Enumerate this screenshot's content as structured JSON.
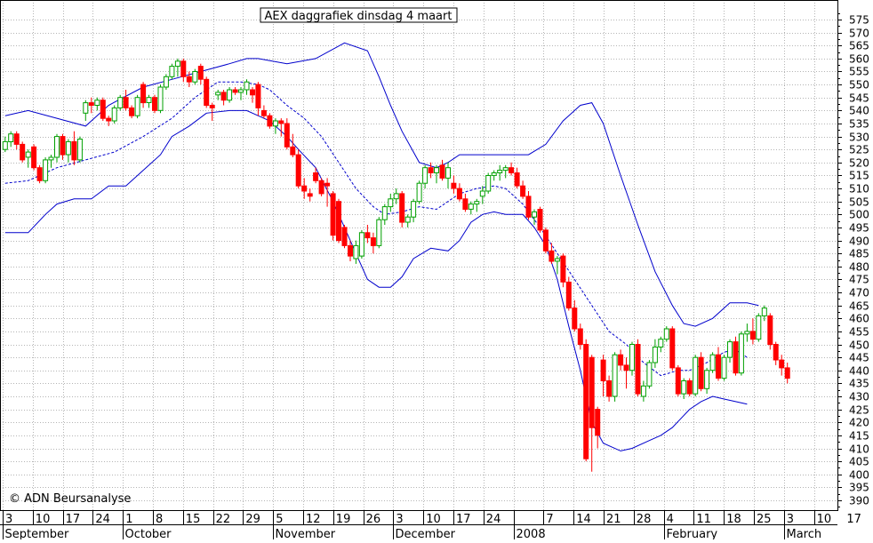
{
  "chart_data": {
    "type": "candlestick",
    "title": "AEX daggrafiek dinsdag 4 maart",
    "watermark": "© ADN Beursanalyse",
    "ylim": [
      386,
      580
    ],
    "y_ticks": [
      390,
      395,
      400,
      405,
      410,
      415,
      420,
      425,
      430,
      435,
      440,
      445,
      450,
      455,
      460,
      465,
      470,
      475,
      480,
      485,
      490,
      495,
      500,
      505,
      510,
      515,
      520,
      525,
      530,
      535,
      540,
      545,
      550,
      555,
      560,
      565,
      570,
      575
    ],
    "x_day_labels": [
      "3",
      "10",
      "17",
      "24",
      "1",
      "8",
      "15",
      "22",
      "29",
      "5",
      "12",
      "19",
      "26",
      "3",
      "10",
      "17",
      "24",
      "",
      "7",
      "14",
      "21",
      "28",
      "4",
      "11",
      "18",
      "25",
      "3",
      "10",
      "17"
    ],
    "month_labels": [
      {
        "label": "September",
        "week_index": 0
      },
      {
        "label": "October",
        "week_index": 4
      },
      {
        "label": "November",
        "week_index": 9
      },
      {
        "label": "December",
        "week_index": 13
      },
      {
        "label": "2008",
        "week_index": 17
      },
      {
        "label": "February",
        "week_index": 22
      },
      {
        "label": "March",
        "week_index": 26
      }
    ],
    "colors": {
      "up": "#00a000",
      "down": "#ff0000",
      "bands": "#0000cc",
      "grid": "#b4b4b4"
    },
    "grid": true,
    "bollinger": {
      "upper": [
        [
          1,
          538
        ],
        [
          5,
          540
        ],
        [
          10,
          537
        ],
        [
          15,
          534
        ],
        [
          19,
          542
        ],
        [
          25,
          549
        ],
        [
          30,
          552
        ],
        [
          35,
          555
        ],
        [
          40,
          558
        ],
        [
          43,
          560
        ],
        [
          45,
          560
        ],
        [
          50,
          558
        ],
        [
          55,
          560
        ],
        [
          60,
          566
        ],
        [
          64,
          563
        ],
        [
          66,
          553
        ],
        [
          68,
          542
        ],
        [
          70,
          532
        ],
        [
          73,
          520
        ],
        [
          76,
          518
        ],
        [
          78,
          520
        ],
        [
          80,
          523
        ],
        [
          82,
          523
        ],
        [
          86,
          523
        ],
        [
          92,
          523
        ],
        [
          95,
          527
        ],
        [
          98,
          536
        ],
        [
          101,
          542
        ],
        [
          103,
          543
        ],
        [
          105,
          535
        ],
        [
          108,
          515
        ],
        [
          111,
          496
        ],
        [
          114,
          478
        ],
        [
          117,
          465
        ],
        [
          119,
          458
        ],
        [
          121,
          457
        ],
        [
          124,
          460
        ],
        [
          127,
          466
        ],
        [
          130,
          466
        ],
        [
          132,
          465
        ]
      ],
      "middle": [
        [
          1,
          512
        ],
        [
          5,
          513
        ],
        [
          10,
          518
        ],
        [
          15,
          521
        ],
        [
          20,
          524
        ],
        [
          25,
          530
        ],
        [
          30,
          537
        ],
        [
          34,
          545
        ],
        [
          38,
          551
        ],
        [
          42,
          551
        ],
        [
          45,
          550
        ],
        [
          47,
          548
        ],
        [
          50,
          542
        ],
        [
          53,
          537
        ],
        [
          56,
          530
        ],
        [
          59,
          520
        ],
        [
          62,
          510
        ],
        [
          65,
          503
        ],
        [
          67,
          500
        ],
        [
          70,
          501
        ],
        [
          73,
          503
        ],
        [
          76,
          502
        ],
        [
          78,
          505
        ],
        [
          80,
          508
        ],
        [
          83,
          510
        ],
        [
          86,
          511
        ],
        [
          88,
          510
        ],
        [
          91,
          504
        ],
        [
          94,
          495
        ],
        [
          97,
          485
        ],
        [
          100,
          475
        ],
        [
          103,
          465
        ],
        [
          106,
          455
        ],
        [
          109,
          450
        ],
        [
          112,
          443
        ],
        [
          115,
          438
        ],
        [
          118,
          440
        ],
        [
          120,
          440
        ],
        [
          123,
          443
        ],
        [
          126,
          447
        ],
        [
          128,
          448
        ],
        [
          130,
          445
        ]
      ],
      "lower": [
        [
          1,
          493
        ],
        [
          5,
          493
        ],
        [
          8,
          500
        ],
        [
          10,
          504
        ],
        [
          13,
          506
        ],
        [
          16,
          506
        ],
        [
          19,
          511
        ],
        [
          22,
          511
        ],
        [
          25,
          517
        ],
        [
          28,
          523
        ],
        [
          30,
          530
        ],
        [
          33,
          534
        ],
        [
          36,
          539
        ],
        [
          40,
          540
        ],
        [
          43,
          540
        ],
        [
          45,
          538
        ],
        [
          47,
          536
        ],
        [
          50,
          530
        ],
        [
          52,
          525
        ],
        [
          55,
          518
        ],
        [
          58,
          505
        ],
        [
          60,
          495
        ],
        [
          62,
          485
        ],
        [
          64,
          475
        ],
        [
          66,
          472
        ],
        [
          68,
          472
        ],
        [
          70,
          476
        ],
        [
          72,
          483
        ],
        [
          75,
          487
        ],
        [
          78,
          486
        ],
        [
          80,
          490
        ],
        [
          82,
          497
        ],
        [
          84,
          500
        ],
        [
          86,
          501
        ],
        [
          88,
          500
        ],
        [
          91,
          500
        ],
        [
          93,
          495
        ],
        [
          95,
          488
        ],
        [
          97,
          475
        ],
        [
          99,
          457
        ],
        [
          101,
          440
        ],
        [
          103,
          420
        ],
        [
          105,
          412
        ],
        [
          108,
          409
        ],
        [
          110,
          410
        ],
        [
          113,
          413
        ],
        [
          115,
          415
        ],
        [
          117,
          418
        ],
        [
          120,
          425
        ],
        [
          122,
          428
        ],
        [
          124,
          430
        ],
        [
          126,
          429
        ],
        [
          128,
          428
        ],
        [
          130,
          427
        ]
      ]
    },
    "candles": [
      [
        1,
        525,
        530,
        524,
        528
      ],
      [
        2,
        528,
        532,
        526,
        531
      ],
      [
        3,
        531,
        532,
        525,
        527
      ],
      [
        4,
        527,
        528,
        520,
        521
      ],
      [
        5,
        522,
        525,
        518,
        524
      ],
      [
        6,
        526,
        527,
        517,
        518
      ],
      [
        7,
        518,
        519,
        512,
        513
      ],
      [
        8,
        513,
        522,
        512,
        521
      ],
      [
        9,
        521,
        523,
        518,
        522
      ],
      [
        10,
        522,
        531,
        520,
        530
      ],
      [
        11,
        530,
        531,
        521,
        523
      ],
      [
        12,
        523,
        529,
        520,
        528
      ],
      [
        13,
        528,
        532,
        519,
        521
      ],
      [
        14,
        521,
        530,
        520,
        529
      ],
      [
        15,
        539,
        544,
        536,
        543
      ],
      [
        16,
        543,
        545,
        539,
        542
      ],
      [
        17,
        542,
        545,
        540,
        544
      ],
      [
        18,
        544,
        545,
        536,
        537
      ],
      [
        19,
        537,
        538,
        534,
        536
      ],
      [
        20,
        536,
        542,
        535,
        541
      ],
      [
        21,
        541,
        546,
        540,
        545
      ],
      [
        22,
        545,
        548,
        540,
        541
      ],
      [
        23,
        541,
        542,
        537,
        538
      ],
      [
        24,
        538,
        546,
        537,
        545
      ],
      [
        25,
        550,
        551,
        541,
        543
      ],
      [
        26,
        543,
        546,
        541,
        545
      ],
      [
        27,
        545,
        546,
        539,
        540
      ],
      [
        28,
        540,
        550,
        539,
        549
      ],
      [
        29,
        549,
        554,
        548,
        553
      ],
      [
        30,
        553,
        558,
        552,
        557
      ],
      [
        31,
        557,
        560,
        553,
        559
      ],
      [
        32,
        559,
        560,
        551,
        553
      ],
      [
        33,
        553,
        555,
        549,
        551
      ],
      [
        34,
        551,
        556,
        550,
        555
      ],
      [
        35,
        557,
        558,
        550,
        552
      ],
      [
        36,
        552,
        553,
        541,
        542
      ],
      [
        37,
        542,
        543,
        536,
        541
      ],
      [
        38,
        546,
        548,
        544,
        547
      ],
      [
        39,
        547,
        548,
        542,
        544
      ],
      [
        40,
        544,
        549,
        543,
        548
      ],
      [
        41,
        548,
        549,
        546,
        547
      ],
      [
        42,
        547,
        549,
        544,
        548
      ],
      [
        43,
        548,
        552,
        546,
        551
      ],
      [
        44,
        548,
        549,
        543,
        546
      ],
      [
        45,
        550,
        551,
        538,
        541
      ],
      [
        46,
        540,
        542,
        537,
        538
      ],
      [
        47,
        538,
        539,
        533,
        534
      ],
      [
        48,
        534,
        537,
        531,
        536
      ],
      [
        49,
        536,
        537,
        530,
        535
      ],
      [
        50,
        535,
        537,
        525,
        526
      ],
      [
        51,
        526,
        531,
        522,
        523
      ],
      [
        52,
        523,
        525,
        510,
        511
      ],
      [
        53,
        511,
        514,
        506,
        509
      ],
      [
        54,
        508,
        510,
        505,
        507
      ],
      [
        55,
        516,
        518,
        512,
        513
      ],
      [
        56,
        513,
        514,
        507,
        508
      ],
      [
        57,
        512,
        514,
        503,
        511
      ],
      [
        58,
        508,
        509,
        490,
        492
      ],
      [
        59,
        505,
        506,
        489,
        490
      ],
      [
        60,
        495,
        496,
        487,
        488
      ],
      [
        61,
        488,
        490,
        482,
        484
      ],
      [
        62,
        483,
        490,
        481,
        488
      ],
      [
        63,
        484,
        494,
        483,
        493
      ],
      [
        64,
        493,
        496,
        489,
        491
      ],
      [
        65,
        491,
        493,
        485,
        488
      ],
      [
        66,
        488,
        499,
        487,
        498
      ],
      [
        67,
        498,
        504,
        496,
        503
      ],
      [
        68,
        503,
        508,
        501,
        506
      ],
      [
        69,
        506,
        510,
        504,
        508
      ],
      [
        70,
        508,
        509,
        495,
        497
      ],
      [
        71,
        497,
        500,
        495,
        499
      ],
      [
        72,
        499,
        506,
        497,
        505
      ],
      [
        73,
        505,
        513,
        504,
        512
      ],
      [
        74,
        512,
        519,
        510,
        518
      ],
      [
        75,
        518,
        520,
        514,
        516
      ],
      [
        76,
        516,
        519,
        512,
        518
      ],
      [
        77,
        519,
        521,
        513,
        514
      ],
      [
        78,
        514,
        520,
        510,
        518
      ],
      [
        79,
        512,
        515,
        508,
        510
      ],
      [
        80,
        510,
        512,
        505,
        506
      ],
      [
        81,
        506,
        508,
        501,
        502
      ],
      [
        82,
        502,
        505,
        500,
        504
      ],
      [
        83,
        504,
        506,
        501,
        505
      ],
      [
        84,
        507,
        511,
        504,
        509
      ],
      [
        85,
        509,
        516,
        508,
        515
      ],
      [
        86,
        515,
        517,
        513,
        516
      ],
      [
        87,
        516,
        519,
        513,
        517
      ],
      [
        88,
        517,
        519,
        514,
        518
      ],
      [
        89,
        518,
        520,
        515,
        516
      ],
      [
        90,
        516,
        518,
        510,
        511
      ],
      [
        91,
        511,
        513,
        506,
        507
      ],
      [
        92,
        507,
        509,
        498,
        499
      ],
      [
        93,
        499,
        502,
        496,
        501
      ],
      [
        94,
        502,
        503,
        493,
        494
      ],
      [
        95,
        494,
        495,
        485,
        486
      ],
      [
        96,
        486,
        489,
        481,
        482
      ],
      [
        97,
        482,
        484,
        477,
        483
      ],
      [
        98,
        484,
        485,
        472,
        474
      ],
      [
        99,
        474,
        476,
        463,
        464
      ],
      [
        100,
        464,
        467,
        455,
        456
      ],
      [
        101,
        456,
        458,
        448,
        450
      ],
      [
        102,
        450,
        452,
        405,
        406
      ],
      [
        103,
        445,
        446,
        401,
        418
      ],
      [
        104,
        425,
        426,
        410,
        415
      ],
      [
        105,
        444,
        446,
        430,
        436
      ],
      [
        106,
        436,
        438,
        428,
        430
      ],
      [
        107,
        430,
        447,
        428,
        446
      ],
      [
        108,
        446,
        448,
        440,
        442
      ],
      [
        109,
        442,
        445,
        433,
        440
      ],
      [
        110,
        440,
        451,
        438,
        450
      ],
      [
        111,
        450,
        452,
        430,
        431
      ],
      [
        112,
        430,
        436,
        428,
        434
      ],
      [
        113,
        434,
        444,
        433,
        443
      ],
      [
        114,
        443,
        452,
        441,
        449
      ],
      [
        115,
        449,
        453,
        447,
        452
      ],
      [
        116,
        452,
        457,
        451,
        456
      ],
      [
        117,
        456,
        457,
        440,
        441
      ],
      [
        118,
        441,
        442,
        430,
        431
      ],
      [
        119,
        431,
        437,
        429,
        436
      ],
      [
        120,
        436,
        437,
        430,
        431
      ],
      [
        121,
        431,
        446,
        430,
        445
      ],
      [
        122,
        445,
        447,
        432,
        433
      ],
      [
        123,
        433,
        441,
        431,
        440
      ],
      [
        124,
        440,
        447,
        439,
        446
      ],
      [
        125,
        446,
        449,
        436,
        437
      ],
      [
        126,
        437,
        446,
        436,
        445
      ],
      [
        127,
        445,
        452,
        443,
        451
      ],
      [
        128,
        451,
        453,
        438,
        439
      ],
      [
        129,
        439,
        455,
        438,
        454
      ],
      [
        130,
        454,
        458,
        451,
        455
      ],
      [
        131,
        455,
        460,
        450,
        452
      ],
      [
        132,
        452,
        462,
        451,
        461
      ],
      [
        133,
        461,
        465,
        459,
        464
      ],
      [
        134,
        461,
        462,
        448,
        450
      ],
      [
        135,
        450,
        451,
        442,
        444
      ],
      [
        136,
        444,
        446,
        438,
        441
      ],
      [
        137,
        441,
        443,
        435,
        437
      ]
    ]
  }
}
